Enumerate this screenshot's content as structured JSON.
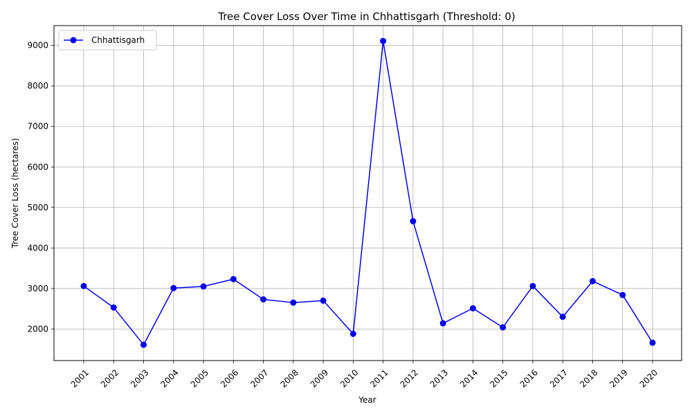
{
  "chart_data": {
    "type": "line",
    "title": "Tree Cover Loss Over Time in Chhattisgarh (Threshold: 0)",
    "xlabel": "Year",
    "ylabel": "Tree Cover Loss (hectares)",
    "categories": [
      "2001",
      "2002",
      "2003",
      "2004",
      "2005",
      "2006",
      "2007",
      "2008",
      "2009",
      "2010",
      "2011",
      "2012",
      "2013",
      "2014",
      "2015",
      "2016",
      "2017",
      "2018",
      "2019",
      "2020"
    ],
    "series": [
      {
        "name": "Chhattisgarh",
        "color": "#0000ee",
        "marker": "circle",
        "values": [
          3060,
          2530,
          1610,
          3010,
          3050,
          3230,
          2730,
          2650,
          2700,
          1880,
          9110,
          4660,
          2140,
          2510,
          2040,
          3060,
          2300,
          3180,
          2840,
          1660
        ]
      }
    ],
    "ylim": [
      1220,
      9490
    ],
    "yticks": [
      2000,
      3000,
      4000,
      5000,
      6000,
      7000,
      8000,
      9000
    ],
    "grid": true,
    "legend_position": "top-left"
  }
}
